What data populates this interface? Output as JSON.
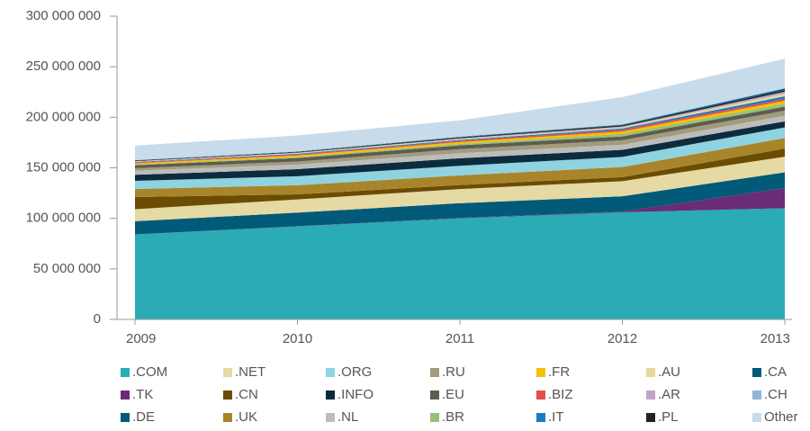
{
  "chart_data": {
    "type": "stacked_area",
    "categories": [
      "2009",
      "2010",
      "2011",
      "2012",
      "2013"
    ],
    "ylim": [
      0,
      300000000
    ],
    "yticks": [
      {
        "value": 0,
        "label": "0"
      },
      {
        "value": 50000000,
        "label": "50 000 000"
      },
      {
        "value": 100000000,
        "label": "100 000 000"
      },
      {
        "value": 150000000,
        "label": "150 000 000"
      },
      {
        "value": 200000000,
        "label": "200 000 000"
      },
      {
        "value": 250000000,
        "label": "250 000 000"
      },
      {
        "value": 300000000,
        "label": "300 000 000"
      }
    ],
    "legend_rows": 3,
    "series": [
      {
        "name": ".COM",
        "color": "#2aabb5",
        "values": [
          84000000,
          92000000,
          100000000,
          106000000,
          110000000
        ]
      },
      {
        "name": ".TK",
        "color": "#6a2c76",
        "values": [
          100000,
          200000,
          500000,
          800000,
          20000000
        ]
      },
      {
        "name": ".DE",
        "color": "#005a78",
        "values": [
          13000000,
          13500000,
          14500000,
          15000000,
          15500000
        ]
      },
      {
        "name": ".NET",
        "color": "#e5d9a4",
        "values": [
          12000000,
          13000000,
          14000000,
          15000000,
          15500000
        ]
      },
      {
        "name": ".CN",
        "color": "#6b4c00",
        "values": [
          12000000,
          5000000,
          4000000,
          4000000,
          8000000
        ]
      },
      {
        "name": ".UK",
        "color": "#a8852a",
        "values": [
          8000000,
          9000000,
          9500000,
          10000000,
          10500000
        ]
      },
      {
        "name": ".ORG",
        "color": "#8fd3e0",
        "values": [
          8000000,
          9000000,
          9500000,
          10000000,
          10500000
        ]
      },
      {
        "name": ".INFO",
        "color": "#0c2c3e",
        "values": [
          6000000,
          7000000,
          7500000,
          7000000,
          6000000
        ]
      },
      {
        "name": ".NL",
        "color": "#bcbcbc",
        "values": [
          4000000,
          4500000,
          5000000,
          5000000,
          5500000
        ]
      },
      {
        "name": ".RU",
        "color": "#a19d7c",
        "values": [
          2500000,
          3000000,
          4000000,
          4500000,
          5000000
        ]
      },
      {
        "name": ".EU",
        "color": "#5e5b52",
        "values": [
          3000000,
          3500000,
          3700000,
          3800000,
          4000000
        ]
      },
      {
        "name": ".BR",
        "color": "#93c17a",
        "values": [
          700000,
          1000000,
          1500000,
          2500000,
          3000000
        ]
      },
      {
        "name": ".FR",
        "color": "#f5c000",
        "values": [
          1200000,
          1500000,
          1800000,
          2300000,
          2800000
        ]
      },
      {
        "name": ".BIZ",
        "color": "#e05050",
        "values": [
          800000,
          1000000,
          1200000,
          1800000,
          2000000
        ]
      },
      {
        "name": ".IT",
        "color": "#1a7ac0",
        "values": [
          500000,
          700000,
          900000,
          1200000,
          2500000
        ]
      },
      {
        "name": ".AU",
        "color": "#e6d89a",
        "values": [
          500000,
          700000,
          900000,
          1000000,
          2500000
        ]
      },
      {
        "name": ".AR",
        "color": "#c1a3cc",
        "values": [
          300000,
          400000,
          600000,
          1000000,
          2000000
        ]
      },
      {
        "name": ".PL",
        "color": "#222222",
        "values": [
          500000,
          600000,
          800000,
          1000000,
          1500000
        ]
      },
      {
        "name": ".CA",
        "color": "#005a78",
        "values": [
          300000,
          400000,
          600000,
          700000,
          1500000
        ]
      },
      {
        "name": ".CH",
        "color": "#8fb4d9",
        "values": [
          300000,
          400000,
          500000,
          600000,
          800000
        ]
      },
      {
        "name": "Other",
        "color": "#c8dbea",
        "values": [
          14300000,
          15600000,
          16000000,
          26800000,
          28900000
        ]
      }
    ]
  }
}
